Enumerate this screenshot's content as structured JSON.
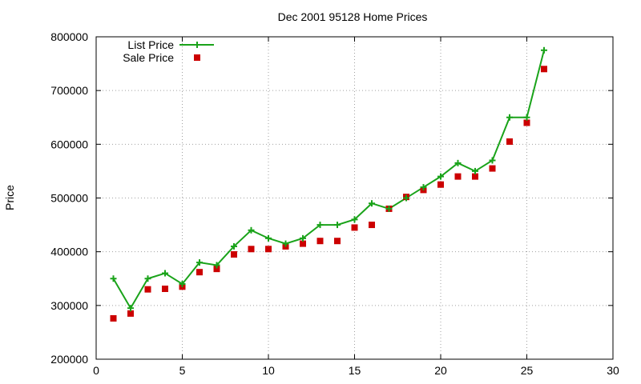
{
  "chart_data": {
    "type": "line",
    "title": "Dec 2001 95128 Home Prices",
    "xlabel": "",
    "ylabel": "Price",
    "xlim": [
      0,
      30
    ],
    "ylim": [
      200000,
      800000
    ],
    "xticks": [
      0,
      5,
      10,
      15,
      20,
      25,
      30
    ],
    "yticks": [
      200000,
      300000,
      400000,
      500000,
      600000,
      700000,
      800000
    ],
    "grid": true,
    "legend_position": "top-left",
    "series": [
      {
        "name": "List Price",
        "style": "lines+plus-markers",
        "color": "#1aa31a",
        "x": [
          1,
          2,
          3,
          4,
          5,
          6,
          7,
          8,
          9,
          10,
          11,
          12,
          13,
          14,
          15,
          16,
          17,
          18,
          19,
          20,
          21,
          22,
          23,
          24,
          25,
          26
        ],
        "y": [
          350000,
          295000,
          350000,
          360000,
          340000,
          380000,
          375000,
          410000,
          440000,
          425000,
          415000,
          425000,
          450000,
          450000,
          460000,
          490000,
          480000,
          500000,
          520000,
          540000,
          565000,
          550000,
          570000,
          650000,
          650000,
          775000
        ]
      },
      {
        "name": "Sale Price",
        "style": "square-markers",
        "color": "#cc0000",
        "x": [
          1,
          2,
          3,
          4,
          5,
          6,
          7,
          8,
          9,
          10,
          11,
          12,
          13,
          14,
          15,
          16,
          17,
          18,
          19,
          20,
          21,
          22,
          23,
          24,
          25,
          26
        ],
        "y": [
          276000,
          285000,
          330000,
          331000,
          335000,
          362000,
          368000,
          395000,
          405000,
          405000,
          410000,
          415000,
          420000,
          420000,
          445000,
          450000,
          480000,
          502000,
          515000,
          525000,
          540000,
          540000,
          555000,
          605000,
          640000,
          740000
        ]
      }
    ]
  }
}
